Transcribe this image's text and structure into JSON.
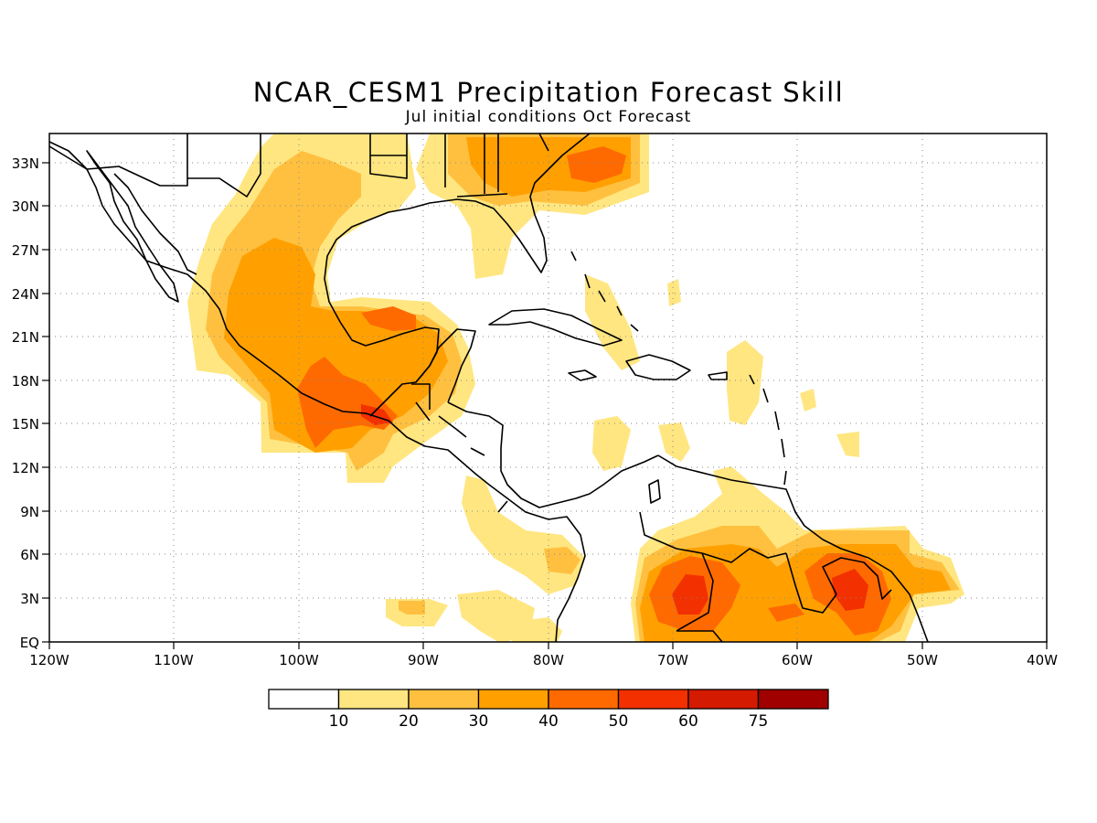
{
  "title": "NCAR_CESM1 Precipitation Forecast Skill",
  "subtitle": "Jul initial conditions   Oct Forecast",
  "map": {
    "lon_range": [
      -120,
      -40
    ],
    "lat_range": [
      0,
      35
    ],
    "x_tick_labels": [
      "120W",
      "110W",
      "100W",
      "90W",
      "80W",
      "70W",
      "60W",
      "50W",
      "40W"
    ],
    "y_tick_labels": [
      "EQ",
      "3N",
      "6N",
      "9N",
      "12N",
      "15N",
      "18N",
      "21N",
      "24N",
      "27N",
      "30N",
      "33N"
    ],
    "grid": "dotted"
  },
  "colorbar": {
    "labels": [
      "10",
      "20",
      "30",
      "40",
      "50",
      "60",
      "75"
    ],
    "colors": [
      "#ffffff",
      "#ffe680",
      "#ffc040",
      "#ffa000",
      "#ff6a00",
      "#f23000",
      "#d41a00",
      "#a00000"
    ]
  },
  "colors": {
    "c10": "#ffe680",
    "c20": "#ffc040",
    "c30": "#ffa000",
    "c40": "#ff6a00",
    "c50": "#f23000",
    "coast": "#000000"
  }
}
